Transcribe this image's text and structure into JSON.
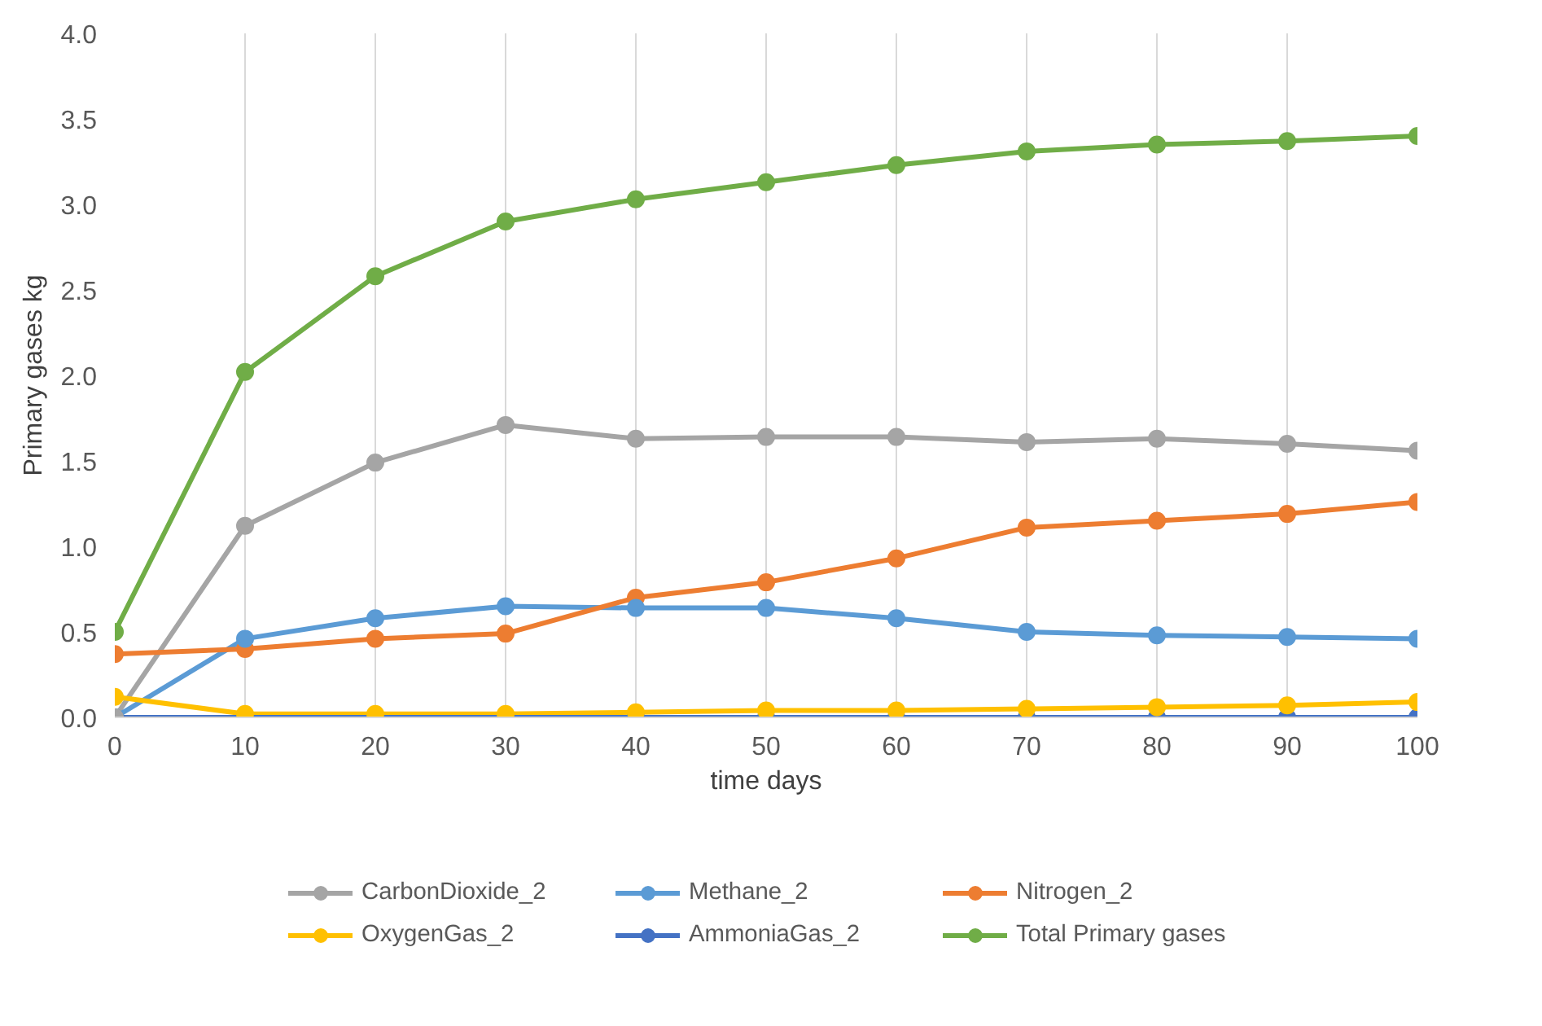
{
  "chart_data": {
    "type": "line",
    "xlabel": "time days",
    "ylabel": "Primary gases kg",
    "x": [
      0,
      10,
      20,
      30,
      40,
      50,
      60,
      70,
      80,
      90,
      100
    ],
    "xlim": [
      0,
      100
    ],
    "xticks": [
      0,
      10,
      20,
      30,
      40,
      50,
      60,
      70,
      80,
      90,
      100
    ],
    "ylim": [
      0,
      4
    ],
    "yticks": [
      {
        "value": 0,
        "label": "0.0"
      },
      {
        "value": 0.5,
        "label": "0.5"
      },
      {
        "value": 1,
        "label": "1.0"
      },
      {
        "value": 1.5,
        "label": "1.5"
      },
      {
        "value": 2,
        "label": "2.0"
      },
      {
        "value": 2.5,
        "label": "2.5"
      },
      {
        "value": 3,
        "label": "3.0"
      },
      {
        "value": 3.5,
        "label": "3.5"
      },
      {
        "value": 4,
        "label": "4.0"
      }
    ],
    "grid": "x",
    "legend": "bottom",
    "marker": "circle",
    "line_style": "solid",
    "series": [
      {
        "name": "CarbonDioxide_2",
        "color": "#a5a5a5",
        "values": [
          0.0,
          1.12,
          1.49,
          1.71,
          1.63,
          1.64,
          1.64,
          1.61,
          1.63,
          1.6,
          1.56
        ]
      },
      {
        "name": "Methane_2",
        "color": "#5b9bd5",
        "values": [
          0.0,
          0.46,
          0.58,
          0.65,
          0.64,
          0.64,
          0.58,
          0.5,
          0.48,
          0.47,
          0.46
        ]
      },
      {
        "name": "Nitrogen_2",
        "color": "#ed7d31",
        "values": [
          0.37,
          0.4,
          0.46,
          0.49,
          0.7,
          0.79,
          0.93,
          1.11,
          1.15,
          1.19,
          1.26
        ]
      },
      {
        "name": "OxygenGas_2",
        "color": "#ffc000",
        "values": [
          0.12,
          0.02,
          0.02,
          0.02,
          0.03,
          0.04,
          0.04,
          0.05,
          0.06,
          0.07,
          0.09
        ]
      },
      {
        "name": "AmmoniaGas_2",
        "color": "#4472c4",
        "values": [
          0,
          0,
          0,
          0,
          0,
          0,
          0,
          0,
          0,
          0,
          0
        ]
      },
      {
        "name": "Total Primary gases",
        "color": "#70ad47",
        "values": [
          0.5,
          2.02,
          2.58,
          2.9,
          3.03,
          3.13,
          3.23,
          3.31,
          3.35,
          3.37,
          3.4
        ]
      }
    ]
  }
}
